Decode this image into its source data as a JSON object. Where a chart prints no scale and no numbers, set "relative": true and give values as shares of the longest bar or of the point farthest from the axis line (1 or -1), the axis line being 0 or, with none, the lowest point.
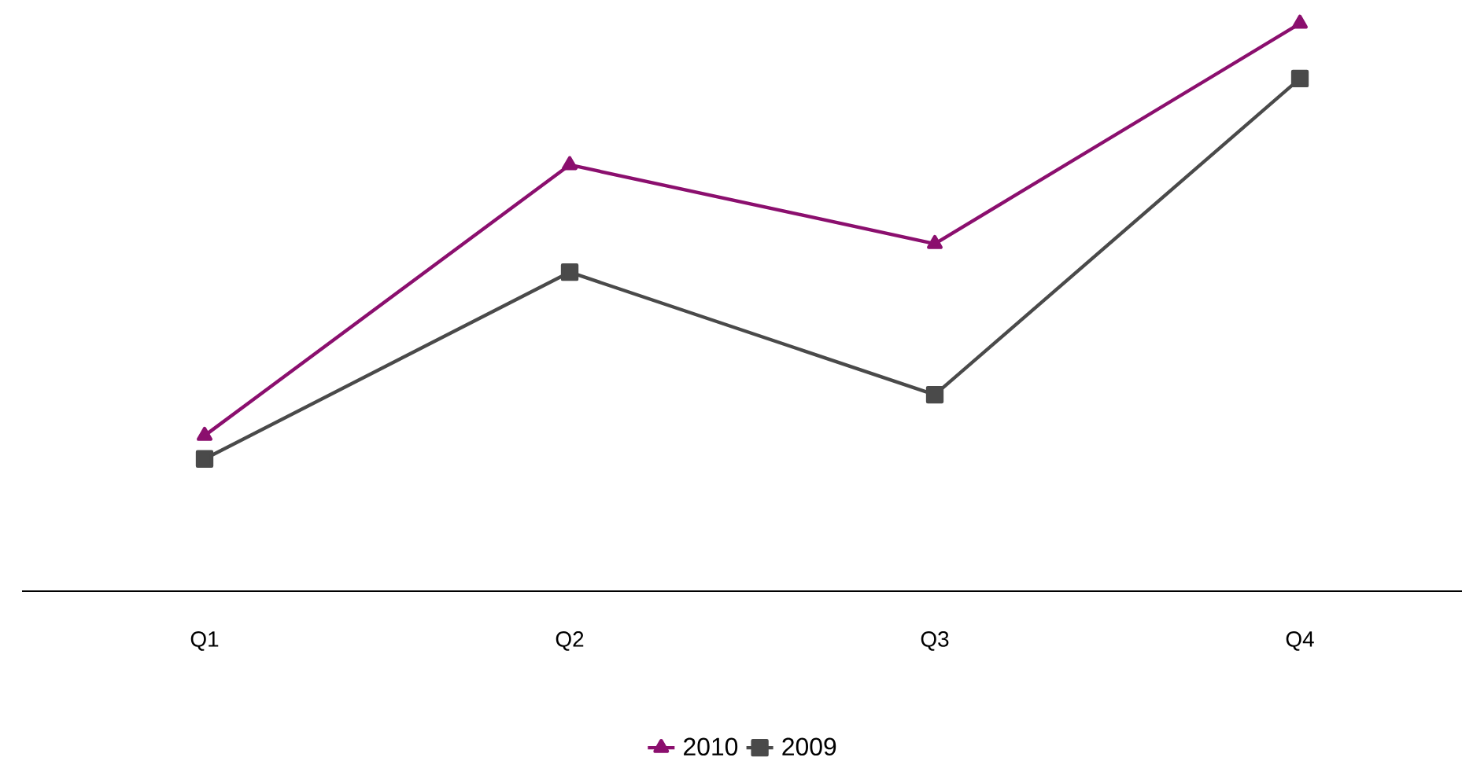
{
  "chart_data": {
    "type": "line",
    "relative": true,
    "categories": [
      "Q1",
      "Q2",
      "Q3",
      "Q4"
    ],
    "series": [
      {
        "name": "2010",
        "color": "#8b0f6e",
        "marker": "triangle",
        "values": [
          0.274,
          0.751,
          0.612,
          1
        ]
      },
      {
        "name": "2009",
        "color": "#4a4a4a",
        "marker": "square",
        "values": [
          0.233,
          0.562,
          0.346,
          0.903
        ]
      }
    ],
    "legend": "bottom",
    "line_style": "solid"
  }
}
